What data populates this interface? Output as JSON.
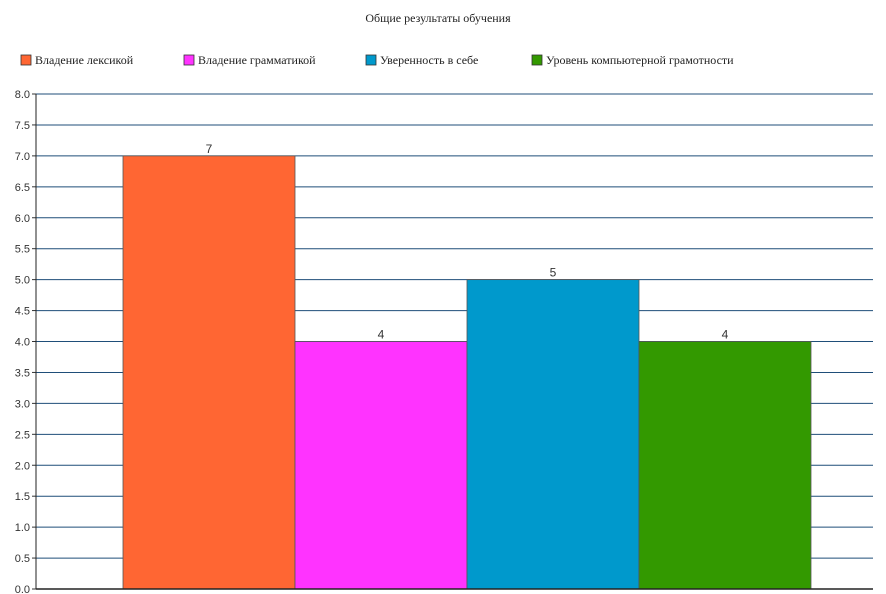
{
  "chart_data": {
    "type": "bar",
    "title": "Общие результаты обучения",
    "categories": [
      "Владение лексикой",
      "Владение грамматикой",
      "Уверенность в себе",
      "Уровень компьютерной грамотности"
    ],
    "values": [
      7,
      4,
      5,
      4
    ],
    "data_labels": [
      "7",
      "4",
      "5",
      "4"
    ],
    "colors": [
      "#ff6633",
      "#ff33ff",
      "#0099cc",
      "#339900"
    ],
    "ylim": [
      0,
      8
    ],
    "y_ticks": [
      "0.0",
      "0.5",
      "1.0",
      "1.5",
      "2.0",
      "2.5",
      "3.0",
      "3.5",
      "4.0",
      "4.5",
      "5.0",
      "5.5",
      "6.0",
      "6.5",
      "7.0",
      "7.5",
      "8.0"
    ],
    "xlabel": "",
    "ylabel": "",
    "grid": true,
    "legend_position": "top-left",
    "grid_color": "#1f4e79"
  }
}
